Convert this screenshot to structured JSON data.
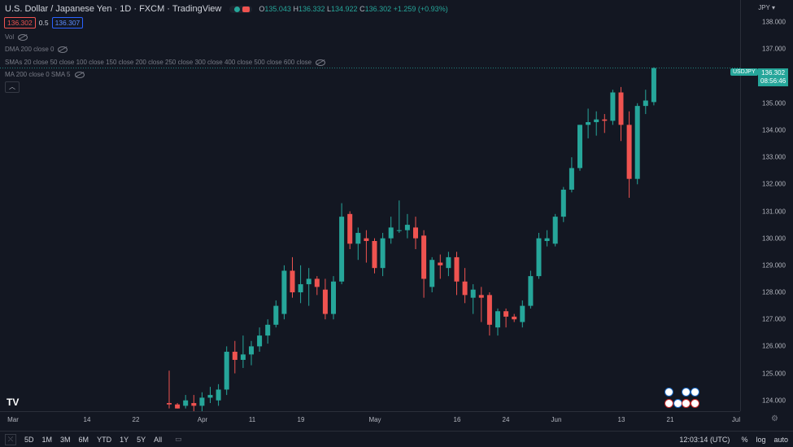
{
  "header": {
    "title": "U.S. Dollar / Japanese Yen · 1D · FXCM · TradingView",
    "ohlc": {
      "o_label": "O",
      "o": "135.043",
      "h_label": "H",
      "h": "136.332",
      "l_label": "L",
      "l": "134.922",
      "c_label": "C",
      "c": "136.302",
      "chg": "+1.259 (+0.93%)"
    },
    "currency": "JPY"
  },
  "quote": {
    "bid": "136.302",
    "spread": "0.5",
    "ask": "136.307"
  },
  "indicators": [
    {
      "label": "Vol"
    },
    {
      "label": "DMA 200 close 0"
    },
    {
      "label": "SMAs 20 close 50 close 100 close 150 close 200 close 250 close 300 close 400 close 500 close 600 close"
    },
    {
      "label": "MA 200 close 0 SMA 5"
    }
  ],
  "price_tag": {
    "symbol": "USDJPY",
    "price": "136.302",
    "countdown": "08:56:46"
  },
  "y_axis": [
    "138.000",
    "137.000",
    "136.000",
    "135.000",
    "134.000",
    "133.000",
    "132.000",
    "131.000",
    "130.000",
    "129.000",
    "128.000",
    "127.000",
    "126.000",
    "125.000",
    "124.000"
  ],
  "x_axis": [
    "Mar",
    "14",
    "22",
    "Apr",
    "11",
    "19",
    "May",
    "16",
    "24",
    "Jun",
    "13",
    "21",
    "Jul"
  ],
  "bottom": {
    "ranges": [
      "5D",
      "1M",
      "3M",
      "6M",
      "YTD",
      "1Y",
      "5Y",
      "All"
    ],
    "time": "12:03:14 (UTC)",
    "pct": "%",
    "log": "log",
    "auto": "auto"
  },
  "logo": "TV",
  "colors": {
    "up": "#26a69a",
    "down": "#ef5350",
    "bg": "#131722"
  },
  "chart_data": {
    "type": "candlestick",
    "ylim": [
      123.6,
      138.4
    ],
    "candles": [
      {
        "o": 123.9,
        "h": 125.1,
        "l": 123.7,
        "c": 123.85
      },
      {
        "o": 123.85,
        "h": 123.9,
        "l": 123.7,
        "c": 123.7
      },
      {
        "o": 123.8,
        "h": 124.2,
        "l": 123.7,
        "c": 124.0
      },
      {
        "o": 123.9,
        "h": 124.2,
        "l": 123.6,
        "c": 123.8
      },
      {
        "o": 123.8,
        "h": 124.3,
        "l": 123.6,
        "c": 124.1
      },
      {
        "o": 124.1,
        "h": 124.5,
        "l": 123.9,
        "c": 124.2
      },
      {
        "o": 124.0,
        "h": 124.6,
        "l": 123.8,
        "c": 124.4
      },
      {
        "o": 124.4,
        "h": 126.0,
        "l": 124.2,
        "c": 125.8
      },
      {
        "o": 125.8,
        "h": 126.2,
        "l": 125.0,
        "c": 125.5
      },
      {
        "o": 125.5,
        "h": 126.4,
        "l": 125.2,
        "c": 125.7
      },
      {
        "o": 125.7,
        "h": 126.2,
        "l": 125.3,
        "c": 126.0
      },
      {
        "o": 126.0,
        "h": 126.7,
        "l": 125.8,
        "c": 126.4
      },
      {
        "o": 126.4,
        "h": 127.0,
        "l": 126.1,
        "c": 126.8
      },
      {
        "o": 126.8,
        "h": 127.7,
        "l": 126.7,
        "c": 127.5
      },
      {
        "o": 127.2,
        "h": 129.0,
        "l": 127.0,
        "c": 128.8
      },
      {
        "o": 128.8,
        "h": 129.3,
        "l": 127.8,
        "c": 128.0
      },
      {
        "o": 128.0,
        "h": 129.0,
        "l": 127.6,
        "c": 128.3
      },
      {
        "o": 128.3,
        "h": 128.9,
        "l": 127.5,
        "c": 128.5
      },
      {
        "o": 128.5,
        "h": 128.6,
        "l": 127.9,
        "c": 128.2
      },
      {
        "o": 128.1,
        "h": 128.5,
        "l": 127.0,
        "c": 127.2
      },
      {
        "o": 127.2,
        "h": 128.6,
        "l": 127.0,
        "c": 128.4
      },
      {
        "o": 128.4,
        "h": 131.3,
        "l": 128.3,
        "c": 130.8
      },
      {
        "o": 130.9,
        "h": 131.0,
        "l": 129.6,
        "c": 129.8
      },
      {
        "o": 129.8,
        "h": 130.4,
        "l": 129.2,
        "c": 130.2
      },
      {
        "o": 130.0,
        "h": 130.3,
        "l": 129.1,
        "c": 129.9
      },
      {
        "o": 129.9,
        "h": 130.0,
        "l": 128.7,
        "c": 128.9
      },
      {
        "o": 128.9,
        "h": 130.2,
        "l": 128.6,
        "c": 130.0
      },
      {
        "o": 130.0,
        "h": 130.8,
        "l": 129.8,
        "c": 130.4
      },
      {
        "o": 130.3,
        "h": 131.4,
        "l": 130.2,
        "c": 130.3
      },
      {
        "o": 130.3,
        "h": 130.9,
        "l": 130.0,
        "c": 130.5
      },
      {
        "o": 130.4,
        "h": 130.8,
        "l": 129.6,
        "c": 130.0
      },
      {
        "o": 130.1,
        "h": 130.3,
        "l": 127.8,
        "c": 128.5
      },
      {
        "o": 128.2,
        "h": 129.3,
        "l": 128.0,
        "c": 129.2
      },
      {
        "o": 129.1,
        "h": 129.4,
        "l": 128.5,
        "c": 129.0
      },
      {
        "o": 128.9,
        "h": 129.5,
        "l": 128.6,
        "c": 129.3
      },
      {
        "o": 129.3,
        "h": 129.5,
        "l": 127.9,
        "c": 128.4
      },
      {
        "o": 128.4,
        "h": 128.9,
        "l": 127.6,
        "c": 127.9
      },
      {
        "o": 127.8,
        "h": 128.3,
        "l": 127.2,
        "c": 128.1
      },
      {
        "o": 127.9,
        "h": 128.2,
        "l": 126.9,
        "c": 127.8
      },
      {
        "o": 127.9,
        "h": 128.0,
        "l": 126.4,
        "c": 126.8
      },
      {
        "o": 126.7,
        "h": 127.4,
        "l": 126.4,
        "c": 127.3
      },
      {
        "o": 127.3,
        "h": 127.4,
        "l": 126.7,
        "c": 127.1
      },
      {
        "o": 127.1,
        "h": 127.2,
        "l": 126.9,
        "c": 127.0
      },
      {
        "o": 126.9,
        "h": 127.7,
        "l": 126.7,
        "c": 127.5
      },
      {
        "o": 127.5,
        "h": 128.8,
        "l": 127.4,
        "c": 128.6
      },
      {
        "o": 128.6,
        "h": 130.2,
        "l": 128.5,
        "c": 130.0
      },
      {
        "o": 129.9,
        "h": 130.3,
        "l": 129.7,
        "c": 130.0
      },
      {
        "o": 129.8,
        "h": 130.9,
        "l": 129.7,
        "c": 130.8
      },
      {
        "o": 130.8,
        "h": 131.9,
        "l": 130.6,
        "c": 131.8
      },
      {
        "o": 131.8,
        "h": 133.0,
        "l": 131.7,
        "c": 132.6
      },
      {
        "o": 132.6,
        "h": 134.2,
        "l": 132.5,
        "c": 134.2
      },
      {
        "o": 134.2,
        "h": 134.8,
        "l": 133.7,
        "c": 134.3
      },
      {
        "o": 134.3,
        "h": 134.7,
        "l": 133.8,
        "c": 134.4
      },
      {
        "o": 134.4,
        "h": 134.6,
        "l": 133.9,
        "c": 134.35
      },
      {
        "o": 134.35,
        "h": 135.5,
        "l": 134.2,
        "c": 135.4
      },
      {
        "o": 135.4,
        "h": 135.6,
        "l": 133.6,
        "c": 134.2
      },
      {
        "o": 134.2,
        "h": 134.7,
        "l": 131.5,
        "c": 132.2
      },
      {
        "o": 132.2,
        "h": 135.0,
        "l": 132.0,
        "c": 134.9
      },
      {
        "o": 134.9,
        "h": 135.5,
        "l": 134.6,
        "c": 135.1
      },
      {
        "o": 135.043,
        "h": 136.332,
        "l": 134.922,
        "c": 136.302
      }
    ]
  }
}
